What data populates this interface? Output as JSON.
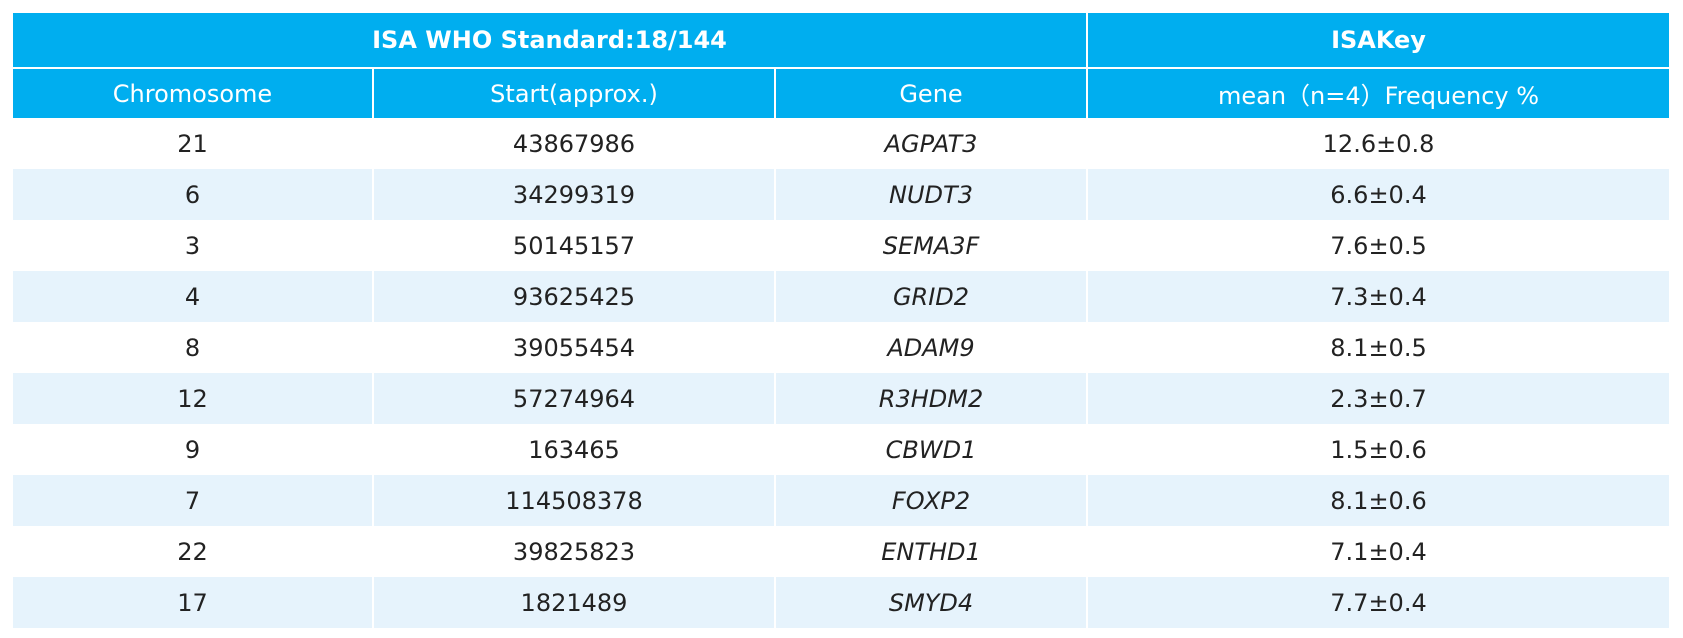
{
  "header": {
    "title": "ISA WHO Standard:18/144",
    "right_title": "ISAKey"
  },
  "columns": [
    "Chromosome",
    "Start(approx.)",
    "Gene",
    "mean（n=4）Frequency %"
  ],
  "rows": [
    [
      "21",
      "43867986",
      "AGPAT3",
      "12.6±0.8"
    ],
    [
      "6",
      "34299319",
      "NUDT3",
      "6.6±0.4"
    ],
    [
      "3",
      "50145157",
      "SEMA3F",
      "7.6±0.5"
    ],
    [
      "4",
      "93625425",
      "GRID2",
      "7.3±0.4"
    ],
    [
      "8",
      "39055454",
      "ADAM9",
      "8.1±0.5"
    ],
    [
      "12",
      "57274964",
      "R3HDM2",
      "2.3±0.7"
    ],
    [
      "9",
      "163465",
      "CBWD1",
      "1.5±0.6"
    ],
    [
      "7",
      "114508378",
      "FOXP2",
      "8.1±0.6"
    ],
    [
      "22",
      "39825823",
      "ENTHD1",
      "7.1±0.4"
    ],
    [
      "17",
      "1821489",
      "SMYD4",
      "7.7±0.4"
    ]
  ]
}
